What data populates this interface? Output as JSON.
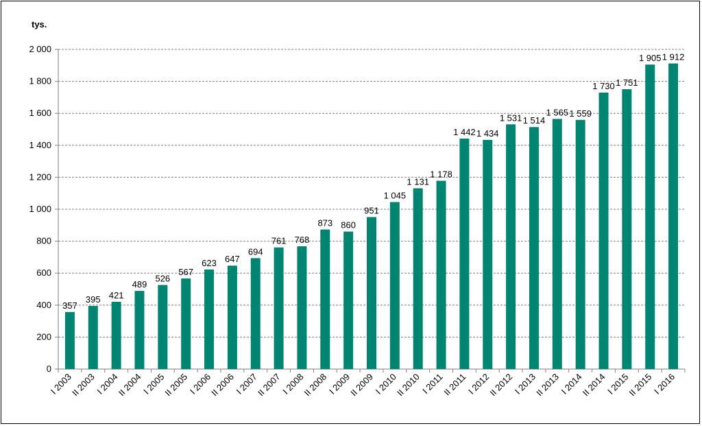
{
  "chart_data": {
    "type": "bar",
    "unit_label": "tys.",
    "categories": [
      "I 2003",
      "II 2003",
      "I 2004",
      "II 2004",
      "I 2005",
      "II 2005",
      "I 2006",
      "II 2006",
      "I 2007",
      "II 2007",
      "I 2008",
      "II 2008",
      "I 2009",
      "II 2009",
      "I 2010",
      "II 2010",
      "I 2011",
      "II 2011",
      "I 2012",
      "II 2012",
      "I 2013",
      "II 2013",
      "I 2014",
      "II 2014",
      "I 2015",
      "II 2015",
      "I 2016"
    ],
    "values": [
      357,
      395,
      421,
      489,
      526,
      567,
      623,
      647,
      694,
      761,
      768,
      873,
      860,
      951,
      1045,
      1131,
      1178,
      1442,
      1434,
      1531,
      1514,
      1565,
      1559,
      1730,
      1751,
      1905,
      1912
    ],
    "value_labels": [
      "357",
      "395",
      "421",
      "489",
      "526",
      "567",
      "623",
      "647",
      "694",
      "761",
      "768",
      "873",
      "860",
      "951",
      "1 045",
      "1 131",
      "1 178",
      "1 442",
      "1 434",
      "1 531",
      "1 514",
      "1 565",
      "1 559",
      "1 730",
      "1 751",
      "1 905",
      "1 912"
    ],
    "ylim": [
      0,
      2000
    ],
    "yticks": [
      0,
      200,
      400,
      600,
      800,
      1000,
      1200,
      1400,
      1600,
      1800,
      2000
    ],
    "ytick_labels": [
      "0",
      "200",
      "400",
      "600",
      "800",
      "1 000",
      "1 200",
      "1 400",
      "1 600",
      "1 800",
      "2 000"
    ],
    "grid": true,
    "bar_color": "#008573"
  }
}
